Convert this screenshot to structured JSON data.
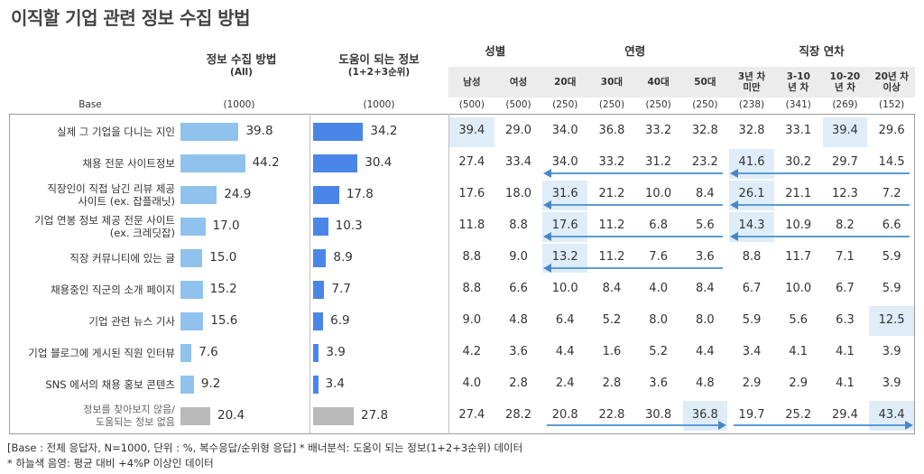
{
  "page_title": "이직할 기업 관련 정보 수집 방법",
  "colors": {
    "bar_all": "#8fc3ee",
    "bar_top3": "#4a86e8",
    "bar_none": "#b9b9b9",
    "highlight": "#deedf8",
    "arrow": "#5b9bd5",
    "header_band": "#ececec"
  },
  "chart_data": {
    "type": "table",
    "title": "이직할 기업 관련 정보 수집 방법",
    "col_all": {
      "title": "정보 수집 방법",
      "subtitle": "(All)"
    },
    "col_top3": {
      "title": "도움이 되는 정보",
      "subtitle": "(1+2+3순위)"
    },
    "base_label": "Base",
    "group_headers": [
      {
        "label": "성별"
      },
      {
        "label": "연령"
      },
      {
        "label": "직장 연차"
      }
    ],
    "segments": [
      "남성",
      "여성",
      "20대",
      "30대",
      "40대",
      "50대",
      "3년 차 미만",
      "3-10 년 차",
      "10-20 년 차",
      "20년 차 이상"
    ],
    "segment_lines": [
      [
        "남성"
      ],
      [
        "여성"
      ],
      [
        "20대"
      ],
      [
        "30대"
      ],
      [
        "40대"
      ],
      [
        "50대"
      ],
      [
        "3년 차",
        "미만"
      ],
      [
        "3-10",
        "년 차"
      ],
      [
        "10-20",
        "년 차"
      ],
      [
        "20년 차",
        "이상"
      ]
    ],
    "base": {
      "all": "(1000)",
      "top3": "(1000)",
      "segments": [
        "(500)",
        "(500)",
        "(250)",
        "(250)",
        "(250)",
        "(250)",
        "(238)",
        "(341)",
        "(269)",
        "(152)"
      ]
    },
    "rows": [
      {
        "label_lines": [
          "실제 그 기업을 다니는 지인"
        ],
        "all": 39.8,
        "top3": 34.2,
        "segments": [
          39.4,
          29.0,
          34.0,
          36.8,
          33.2,
          32.8,
          32.8,
          33.1,
          39.4,
          29.6
        ],
        "highlight": [
          0,
          8
        ]
      },
      {
        "label_lines": [
          "채용 전문 사이트정보"
        ],
        "all": 44.2,
        "top3": 30.4,
        "segments": [
          27.4,
          33.4,
          34.0,
          33.2,
          31.2,
          23.2,
          41.6,
          30.2,
          29.7,
          14.5
        ],
        "highlight": [
          6
        ]
      },
      {
        "label_lines": [
          "직장인이 직접 남긴 리뷰 제공",
          "사이트 (ex. 잡플래닛)"
        ],
        "all": 24.9,
        "top3": 17.8,
        "segments": [
          17.6,
          18.0,
          31.6,
          21.2,
          10.0,
          8.4,
          26.1,
          21.1,
          12.3,
          7.2
        ],
        "highlight": [
          2,
          6
        ]
      },
      {
        "label_lines": [
          "기업 연봉 정보 제공 전문 사이트",
          "(ex. 크레딧잡)"
        ],
        "all": 17.0,
        "top3": 10.3,
        "segments": [
          11.8,
          8.8,
          17.6,
          11.2,
          6.8,
          5.6,
          14.3,
          10.9,
          8.2,
          6.6
        ],
        "highlight": [
          2,
          6
        ]
      },
      {
        "label_lines": [
          "직장 커뮤니티에 있는 글"
        ],
        "all": 15.0,
        "top3": 8.9,
        "segments": [
          8.8,
          9.0,
          13.2,
          11.2,
          7.6,
          3.6,
          8.8,
          11.7,
          7.1,
          5.9
        ],
        "highlight": [
          2
        ]
      },
      {
        "label_lines": [
          "채용중인 직군의 소개 페이지"
        ],
        "all": 15.2,
        "top3": 7.7,
        "segments": [
          8.8,
          6.6,
          10.0,
          8.4,
          4.0,
          8.4,
          6.7,
          10.0,
          6.7,
          5.9
        ],
        "highlight": []
      },
      {
        "label_lines": [
          "기업 관련 뉴스 기사"
        ],
        "all": 15.6,
        "top3": 6.9,
        "segments": [
          9.0,
          4.8,
          6.4,
          5.2,
          8.0,
          8.0,
          5.9,
          5.6,
          6.3,
          12.5
        ],
        "highlight": [
          9
        ]
      },
      {
        "label_lines": [
          "기업 블로그에 게시된 직원 인터뷰"
        ],
        "all": 7.6,
        "top3": 3.9,
        "segments": [
          4.2,
          3.6,
          4.4,
          1.6,
          5.2,
          4.4,
          3.4,
          4.1,
          4.1,
          3.9
        ],
        "highlight": []
      },
      {
        "label_lines": [
          "SNS 에서의 채용 홍보 콘텐츠"
        ],
        "all": 9.2,
        "top3": 3.4,
        "segments": [
          4.0,
          2.8,
          2.4,
          2.8,
          3.6,
          4.8,
          2.9,
          2.9,
          4.1,
          3.9
        ],
        "highlight": []
      },
      {
        "label_lines": [
          "정보를 찾아보지 않음/",
          "도움되는 정보 없음"
        ],
        "all": 20.4,
        "top3": 27.8,
        "segments": [
          27.4,
          28.2,
          20.8,
          22.8,
          30.8,
          36.8,
          19.7,
          25.2,
          29.4,
          43.4
        ],
        "highlight": [
          5,
          9
        ],
        "muted": true
      }
    ],
    "trend_arrows": [
      {
        "row": 1,
        "from_segment": 5,
        "to_segment": 2,
        "direction": "left"
      },
      {
        "row": 1,
        "from_segment": 9,
        "to_segment": 6,
        "direction": "left"
      },
      {
        "row": 2,
        "from_segment": 5,
        "to_segment": 2,
        "direction": "left"
      },
      {
        "row": 2,
        "from_segment": 9,
        "to_segment": 6,
        "direction": "left"
      },
      {
        "row": 3,
        "from_segment": 5,
        "to_segment": 2,
        "direction": "left"
      },
      {
        "row": 3,
        "from_segment": 9,
        "to_segment": 6,
        "direction": "left"
      },
      {
        "row": 4,
        "from_segment": 5,
        "to_segment": 2,
        "direction": "left"
      },
      {
        "row": 9,
        "from_segment": 2,
        "to_segment": 5,
        "direction": "right"
      },
      {
        "row": 9,
        "from_segment": 6,
        "to_segment": 9,
        "direction": "right"
      }
    ]
  },
  "footnotes": [
    "[Base : 전체 응답자, N=1000, 단위 : %, 복수응답/순위형 응답] * 배너분석: 도움이 되는 정보(1+2+3순위) 데이터",
    "* 하늘색 음영: 평균 대비 +4%P 이상인 데이터"
  ]
}
